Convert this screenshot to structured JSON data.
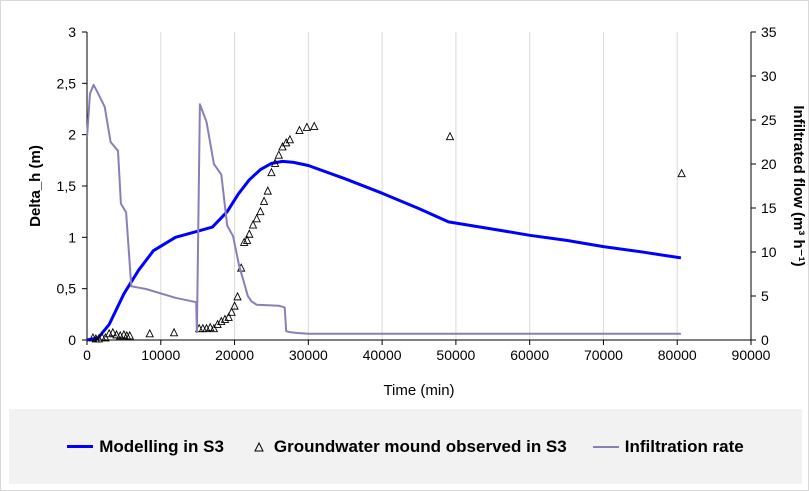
{
  "chart_data": {
    "type": "line",
    "xlabel": "Time (min)",
    "ylabel": "Delta_h (m)",
    "y2label": "Infiltrated flow  (m³ h⁻¹)",
    "xlim": [
      0,
      90000
    ],
    "ylim": [
      0,
      3
    ],
    "y2lim": [
      0,
      35
    ],
    "x_ticks": [
      "0",
      "10000",
      "20000",
      "30000",
      "40000",
      "50000",
      "60000",
      "70000",
      "80000",
      "90000"
    ],
    "y_ticks": [
      "0",
      "0,5",
      "1",
      "1,5",
      "2",
      "2,5",
      "3"
    ],
    "y2_ticks": [
      "0",
      "5",
      "10",
      "15",
      "20",
      "25",
      "30",
      "35"
    ],
    "grid": "vertical",
    "legend_position": "bottom",
    "series": [
      {
        "name": "Modelling in S3",
        "axis": "left",
        "style": "line",
        "color": "#0000ff",
        "x": [
          0,
          1500,
          3000,
          5000,
          7000,
          9000,
          12000,
          15000,
          17000,
          19000,
          20500,
          22000,
          23500,
          25000,
          26500,
          28000,
          30000,
          35000,
          40000,
          45000,
          49000,
          55000,
          60000,
          65000,
          70000,
          75000,
          80500
        ],
        "y": [
          0,
          0.02,
          0.15,
          0.45,
          0.68,
          0.87,
          1.0,
          1.06,
          1.1,
          1.25,
          1.42,
          1.56,
          1.66,
          1.72,
          1.74,
          1.73,
          1.7,
          1.57,
          1.43,
          1.28,
          1.15,
          1.08,
          1.02,
          0.97,
          0.91,
          0.86,
          0.8
        ]
      },
      {
        "name": "Groundwater mound observed in S3",
        "axis": "left",
        "style": "marker",
        "color": "#000000",
        "x": [
          800,
          1200,
          1600,
          2000,
          2500,
          3000,
          3500,
          4000,
          4500,
          5000,
          5400,
          5800,
          8500,
          11800,
          15200,
          15700,
          16200,
          16700,
          17200,
          17700,
          18200,
          18700,
          19200,
          19600,
          20000,
          20400,
          20900,
          21300,
          21700,
          22000,
          22500,
          23000,
          23500,
          24000,
          24500,
          25000,
          25500,
          26000,
          26500,
          27000,
          27500,
          28800,
          29800,
          30800,
          49200,
          80600
        ],
        "y": [
          0.02,
          0.01,
          0.01,
          0.03,
          0.02,
          0.06,
          0.07,
          0.05,
          0.04,
          0.05,
          0.04,
          0.04,
          0.06,
          0.07,
          0.11,
          0.11,
          0.11,
          0.12,
          0.11,
          0.15,
          0.18,
          0.2,
          0.22,
          0.27,
          0.33,
          0.42,
          0.7,
          0.95,
          0.97,
          1.03,
          1.12,
          1.18,
          1.25,
          1.35,
          1.45,
          1.63,
          1.72,
          1.8,
          1.88,
          1.92,
          1.95,
          2.04,
          2.07,
          2.08,
          1.98,
          1.62
        ]
      },
      {
        "name": "Infiltration rate",
        "axis": "right",
        "style": "line",
        "color": "#8c7db8",
        "x": [
          0,
          400,
          900,
          1400,
          2400,
          3200,
          4200,
          4600,
          5300,
          6000,
          8000,
          12000,
          14800,
          14900,
          15300,
          16200,
          17200,
          18200,
          19000,
          19800,
          20600,
          21300,
          21800,
          22300,
          23000,
          26000,
          26800,
          27000,
          27500,
          28500,
          30000,
          40000,
          50000,
          60000,
          70000,
          80500
        ],
        "y": [
          23.0,
          28.0,
          29.0,
          28.2,
          26.5,
          22.5,
          21.5,
          15.5,
          14.5,
          6.1,
          5.8,
          4.8,
          4.3,
          0.9,
          26.8,
          24.8,
          20.0,
          18.8,
          13.0,
          11.8,
          8.5,
          6.5,
          5.0,
          4.4,
          4.0,
          3.9,
          3.7,
          1.0,
          0.9,
          0.8,
          0.7,
          0.7,
          0.7,
          0.7,
          0.7,
          0.7
        ]
      }
    ]
  }
}
